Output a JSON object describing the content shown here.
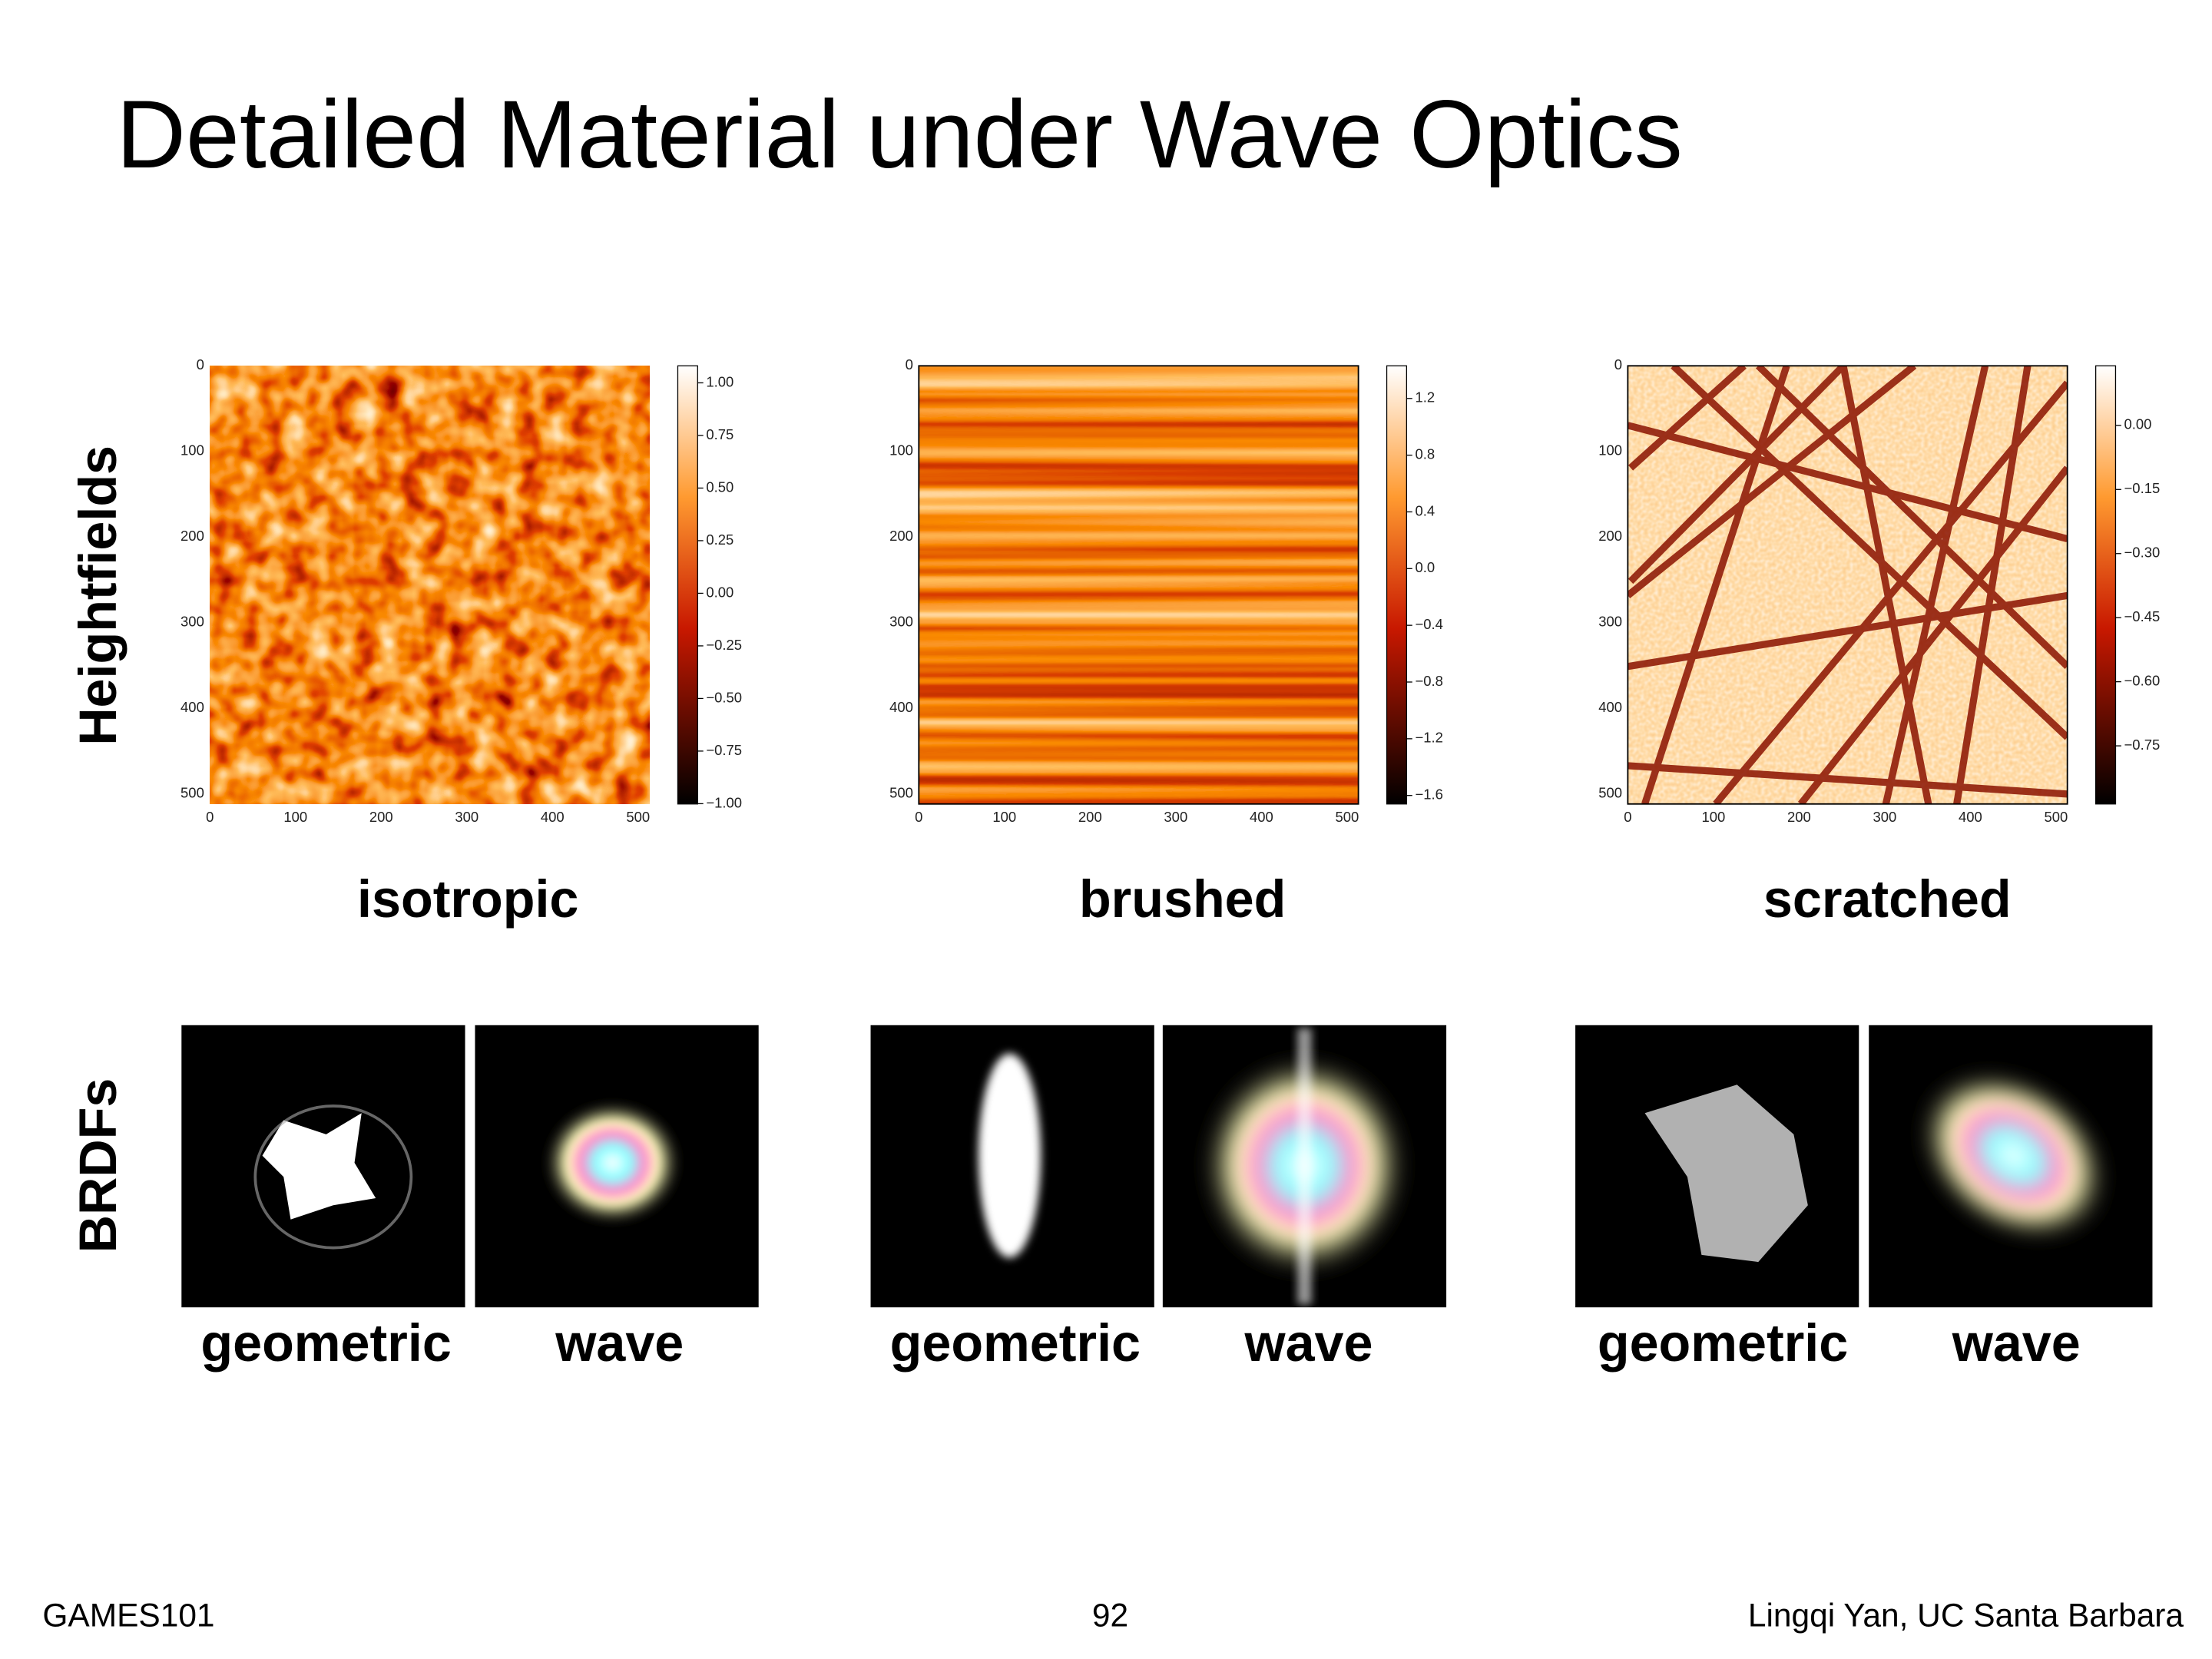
{
  "title": "Detailed Material under Wave Optics",
  "row_labels": [
    "Heightfields",
    "BRDFs"
  ],
  "heightfields": [
    {
      "caption": "isotropic",
      "axis_ticks": [
        "0",
        "100",
        "200",
        "300",
        "400",
        "500"
      ],
      "colorbar_ticks": [
        "1.00",
        "0.75",
        "0.50",
        "0.25",
        "0.00",
        "−0.25",
        "−0.50",
        "−0.75",
        "−1.00"
      ]
    },
    {
      "caption": "brushed",
      "axis_ticks": [
        "0",
        "100",
        "200",
        "300",
        "400",
        "500"
      ],
      "colorbar_ticks": [
        "1.2",
        "0.8",
        "0.4",
        "0.0",
        "−0.4",
        "−0.8",
        "−1.2",
        "−1.6"
      ]
    },
    {
      "caption": "scratched",
      "axis_ticks": [
        "0",
        "100",
        "200",
        "300",
        "400",
        "500"
      ],
      "colorbar_ticks": [
        "0.00",
        "−0.15",
        "−0.30",
        "−0.45",
        "−0.60",
        "−0.75"
      ]
    }
  ],
  "brdfs": [
    {
      "labels": [
        "geometric",
        "wave"
      ]
    },
    {
      "labels": [
        "geometric",
        "wave"
      ]
    },
    {
      "labels": [
        "geometric",
        "wave"
      ]
    }
  ],
  "footer": {
    "left": "GAMES101",
    "center": "92",
    "right": "Lingqi Yan, UC Santa Barbara"
  }
}
